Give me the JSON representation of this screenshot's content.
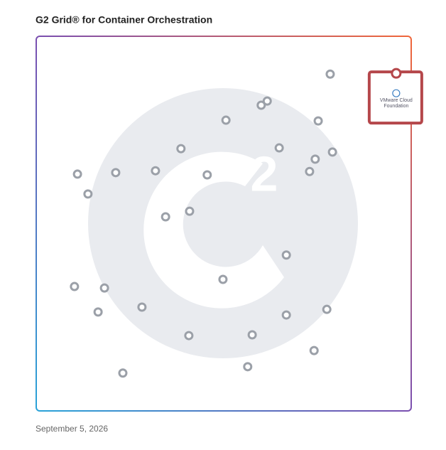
{
  "chart_data": {
    "type": "scatter",
    "title": "G2 Grid® for Container Orchestration",
    "x": [
      78.4,
      61.6,
      60.0,
      50.6,
      75.2,
      38.6,
      64.8,
      79.0,
      74.4,
      72.9,
      11.0,
      21.2,
      31.8,
      45.6,
      13.8,
      40.9,
      34.5,
      66.7,
      49.8,
      10.2,
      18.2,
      16.5,
      28.2,
      77.5,
      66.7,
      40.7,
      57.6,
      74.1,
      56.4,
      23.1
    ],
    "y": [
      89.9,
      82.7,
      81.6,
      77.6,
      77.4,
      70.0,
      70.2,
      69.1,
      67.2,
      63.9,
      63.2,
      63.6,
      64.1,
      63.0,
      57.9,
      53.3,
      51.8,
      41.6,
      35.1,
      33.2,
      32.8,
      26.4,
      27.7,
      27.1,
      25.6,
      20.1,
      20.3,
      16.1,
      11.8,
      10.1
    ],
    "color": "#9ba0a8",
    "highlight": {
      "label": [
        "VMware Cloud",
        "Foundation"
      ],
      "x": 96.0,
      "y": 90.1,
      "color": "#b5474b"
    },
    "xlim": [
      0,
      100
    ],
    "ylim": [
      0,
      100
    ],
    "date": "September 5, 2026"
  }
}
